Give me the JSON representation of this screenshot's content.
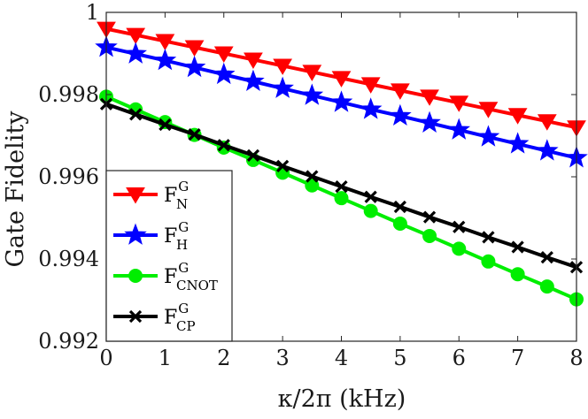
{
  "chart_data": {
    "type": "line",
    "title": "",
    "xlabel": "κ/2π (kHz)",
    "ylabel": "Gate Fidelity",
    "xlim": [
      0,
      8
    ],
    "ylim": [
      0.992,
      1.0
    ],
    "xticks": [
      0,
      1,
      2,
      3,
      4,
      5,
      6,
      7,
      8
    ],
    "yticks": [
      0.992,
      0.994,
      0.996,
      0.998,
      1
    ],
    "ytick_labels": [
      "0.992",
      "0.994",
      "0.996",
      "0.998",
      "1"
    ],
    "xtick_labels": [
      "0",
      "1",
      "2",
      "3",
      "4",
      "5",
      "6",
      "7",
      "8"
    ],
    "grid": false,
    "legend_position": "bottom-left",
    "x": [
      0,
      0.5,
      1,
      1.5,
      2,
      2.5,
      3,
      3.5,
      4,
      4.5,
      5,
      5.5,
      6,
      6.5,
      7,
      7.5,
      8
    ],
    "series": [
      {
        "name": "F_N^G",
        "label_main": "F",
        "label_sup": "G",
        "label_sub": "N",
        "color": "#ff0000",
        "marker": "triangle-down",
        "values": [
          0.9996,
          0.99945,
          0.9993,
          0.99915,
          0.999,
          0.99885,
          0.9987,
          0.99855,
          0.9984,
          0.99825,
          0.9981,
          0.99795,
          0.9978,
          0.99765,
          0.9975,
          0.99735,
          0.9972
        ]
      },
      {
        "name": "F_H^G",
        "label_main": "F",
        "label_sup": "G",
        "label_sub": "H",
        "color": "#0000ff",
        "marker": "star",
        "values": [
          0.99915,
          0.99899,
          0.99883,
          0.99866,
          0.99849,
          0.99832,
          0.99815,
          0.99798,
          0.99781,
          0.99764,
          0.99748,
          0.99731,
          0.99714,
          0.99697,
          0.9968,
          0.99663,
          0.99646
        ]
      },
      {
        "name": "F_CNOT^G",
        "label_main": "F",
        "label_sup": "G",
        "label_sub": "CNOT",
        "color": "#00ee00",
        "marker": "circle",
        "values": [
          0.99795,
          0.99764,
          0.99733,
          0.99702,
          0.99671,
          0.99641,
          0.9961,
          0.99579,
          0.99548,
          0.99517,
          0.99486,
          0.99456,
          0.99425,
          0.99394,
          0.99363,
          0.99333,
          0.99302
        ]
      },
      {
        "name": "F_CP^G",
        "label_main": "F",
        "label_sup": "G",
        "label_sub": "CP",
        "color": "#000000",
        "marker": "x",
        "values": [
          0.99777,
          0.99752,
          0.99727,
          0.99703,
          0.99677,
          0.99652,
          0.99626,
          0.99601,
          0.99576,
          0.99551,
          0.99527,
          0.99502,
          0.99478,
          0.99453,
          0.99429,
          0.99404,
          0.9938
        ]
      }
    ]
  }
}
